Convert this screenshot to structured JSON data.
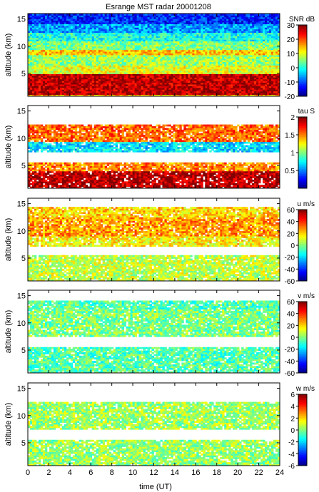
{
  "title": "Esrange MST radar 20001208",
  "xlabel": "time (UT)",
  "x_ticks": [
    0,
    2,
    4,
    6,
    8,
    10,
    12,
    14,
    16,
    18,
    20,
    22,
    24
  ],
  "xlim": [
    0,
    24
  ],
  "chart_data": [
    {
      "type": "heatmap",
      "quantity": "SNR",
      "ylabel": "altitude (km)",
      "ylim": [
        0.8,
        16
      ],
      "y_ticks": [
        5,
        10,
        15
      ],
      "colorbar": {
        "label": "SNR dB",
        "range": [
          -20,
          30
        ],
        "ticks": [
          -20,
          -10,
          0,
          10,
          20,
          30
        ]
      },
      "bands": [
        {
          "alt": [
            0.8,
            1.2
          ],
          "value": 15
        },
        {
          "alt": [
            1.2,
            5.0
          ],
          "value": 27
        },
        {
          "alt": [
            5.0,
            6.5
          ],
          "value": 10
        },
        {
          "alt": [
            6.5,
            8.5
          ],
          "value": 6
        },
        {
          "alt": [
            8.5,
            9.5
          ],
          "value": 14
        },
        {
          "alt": [
            9.5,
            11.0
          ],
          "value": 5
        },
        {
          "alt": [
            11.0,
            12.5
          ],
          "value": 0
        },
        {
          "alt": [
            12.5,
            14.0
          ],
          "value": -6
        },
        {
          "alt": [
            14.0,
            16.0
          ],
          "value": -12
        }
      ]
    },
    {
      "type": "heatmap",
      "quantity": "tau",
      "ylabel": "altitude (km)",
      "ylim": [
        0.8,
        16
      ],
      "y_ticks": [
        5,
        10,
        15
      ],
      "colorbar": {
        "label": "tau S",
        "range": [
          0,
          2
        ],
        "ticks": [
          0.5,
          1,
          1.5,
          2
        ]
      },
      "bands": [
        {
          "alt": [
            0.8,
            4.0
          ],
          "value": 1.9
        },
        {
          "alt": [
            4.0,
            5.5
          ],
          "value": 1.5
        },
        {
          "alt": [
            5.5,
            7.5
          ],
          "value": null
        },
        {
          "alt": [
            7.5,
            9.5
          ],
          "value": 0.7
        },
        {
          "alt": [
            9.5,
            12.5
          ],
          "value": 1.55
        },
        {
          "alt": [
            12.5,
            16.0
          ],
          "value": null
        }
      ]
    },
    {
      "type": "heatmap",
      "quantity": "u",
      "ylabel": "altitude (km)",
      "ylim": [
        0.8,
        16
      ],
      "y_ticks": [
        5,
        10,
        15
      ],
      "colorbar": {
        "label": "u m/s",
        "range": [
          -60,
          60
        ],
        "ticks": [
          -60,
          -40,
          -20,
          0,
          20,
          40,
          60
        ]
      },
      "bands": [
        {
          "alt": [
            0.8,
            5.5
          ],
          "value": 8
        },
        {
          "alt": [
            5.5,
            7.2
          ],
          "value": null
        },
        {
          "alt": [
            7.2,
            9.0
          ],
          "value": 16
        },
        {
          "alt": [
            9.0,
            12.5
          ],
          "value": 27
        },
        {
          "alt": [
            12.5,
            14.5
          ],
          "value": 20
        },
        {
          "alt": [
            14.5,
            16.0
          ],
          "value": null
        }
      ]
    },
    {
      "type": "heatmap",
      "quantity": "v",
      "ylabel": "altitude (km)",
      "ylim": [
        0.8,
        16
      ],
      "y_ticks": [
        5,
        10,
        15
      ],
      "colorbar": {
        "label": "v m/s",
        "range": [
          -60,
          60
        ],
        "ticks": [
          -60,
          -40,
          -20,
          0,
          20,
          40,
          60
        ]
      },
      "bands": [
        {
          "alt": [
            0.8,
            5.5
          ],
          "value": -5
        },
        {
          "alt": [
            5.5,
            7.5
          ],
          "value": null
        },
        {
          "alt": [
            7.5,
            12.5
          ],
          "value": 0
        },
        {
          "alt": [
            12.5,
            14.0
          ],
          "value": -5
        },
        {
          "alt": [
            14.0,
            16.0
          ],
          "value": null
        }
      ]
    },
    {
      "type": "heatmap",
      "quantity": "w",
      "ylabel": "altitude (km)",
      "ylim": [
        0.8,
        16
      ],
      "y_ticks": [
        5,
        10,
        15
      ],
      "colorbar": {
        "label": "w m/s",
        "range": [
          -6,
          6
        ],
        "ticks": [
          -6,
          -4,
          -2,
          0,
          2,
          4,
          6
        ]
      },
      "bands": [
        {
          "alt": [
            0.8,
            5.5
          ],
          "value": 0.3
        },
        {
          "alt": [
            5.5,
            7.5
          ],
          "value": null
        },
        {
          "alt": [
            7.5,
            12.5
          ],
          "value": 0.4
        },
        {
          "alt": [
            12.5,
            16.0
          ],
          "value": null
        }
      ]
    }
  ]
}
